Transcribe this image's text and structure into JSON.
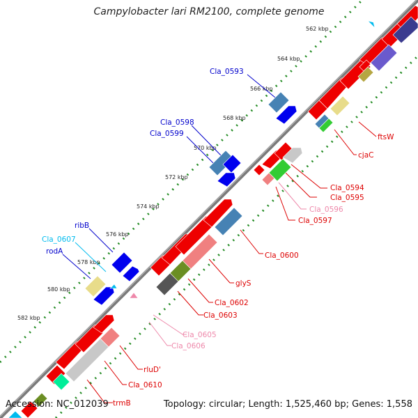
{
  "title": "Campylobacter lari RM2100, complete genome",
  "footer": {
    "accession": "Accession: NC_012039",
    "summary": "Topology: circular; Length: 1,525,460 bp; Genes: 1,558"
  },
  "colors": {
    "backbone": "#7a7a7a",
    "tick_dots": "#228b22",
    "gene_red": "#ee0000",
    "gene_blue": "#0000ee",
    "gene_steel": "#4682b4",
    "gene_khaki": "#e8dc8a",
    "gene_green": "#33cc33",
    "gene_pink": "#f08080",
    "gene_gray": "#c8c8c8",
    "gene_dark": "#555555",
    "gene_olive": "#6b8e23",
    "label_red": "#dd0000",
    "label_blue": "#0000cc",
    "label_cyan": "#00bbee",
    "label_pink": "#ee88aa"
  },
  "kbp_ticks": [
    "562 kbp",
    "564 kbp",
    "566 kbp",
    "568 kbp",
    "570 kbp",
    "572 kbp",
    "574 kbp",
    "576 kbp",
    "578 kbp",
    "580 kbp",
    "582 kbp"
  ],
  "gene_labels": [
    {
      "text": "Cla_0593",
      "color": "label_blue"
    },
    {
      "text": "Cla_0598",
      "color": "label_blue"
    },
    {
      "text": "Cla_0599",
      "color": "label_blue"
    },
    {
      "text": "ribB",
      "color": "label_blue"
    },
    {
      "text": "Cla_0607",
      "color": "label_cyan"
    },
    {
      "text": "rodA",
      "color": "label_blue"
    },
    {
      "text": "ftsW",
      "color": "label_red"
    },
    {
      "text": "cjaC",
      "color": "label_red"
    },
    {
      "text": "Cla_0594",
      "color": "label_red"
    },
    {
      "text": "Cla_0595",
      "color": "label_red"
    },
    {
      "text": "Cla_0596",
      "color": "label_pink"
    },
    {
      "text": "Cla_0597",
      "color": "label_red"
    },
    {
      "text": "Cla_0600",
      "color": "label_red"
    },
    {
      "text": "glyS",
      "color": "label_red"
    },
    {
      "text": "Cla_0602",
      "color": "label_red"
    },
    {
      "text": "Cla_0603",
      "color": "label_red"
    },
    {
      "text": "Cla_0605",
      "color": "label_pink"
    },
    {
      "text": "Cla_0606",
      "color": "label_pink"
    },
    {
      "text": "rluD'",
      "color": "label_red"
    },
    {
      "text": "Cla_0610",
      "color": "label_red"
    },
    {
      "text": "trmB",
      "color": "label_red"
    }
  ]
}
